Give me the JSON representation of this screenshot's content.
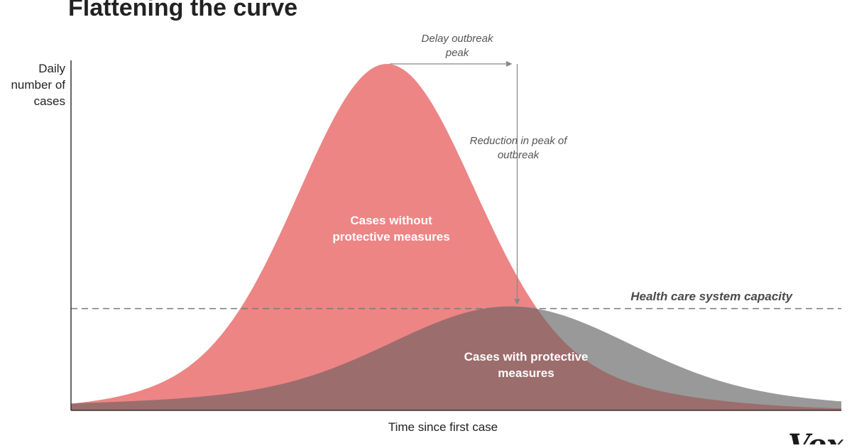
{
  "chart_data": {
    "type": "area",
    "title": "Flattening the curve",
    "xlabel": "Time since first case",
    "ylabel": [
      "Daily",
      "number of",
      "cases"
    ],
    "xlim": [
      0,
      100
    ],
    "ylim": [
      0,
      100
    ],
    "grid": false,
    "legend": "none",
    "series": [
      {
        "label": [
          "Cases without",
          "protective measures"
        ],
        "color": "#ed8585",
        "peak_x": 41,
        "peak_y": 100,
        "spread": 11,
        "tail_left": 12,
        "tail_right": 14
      },
      {
        "label": [
          "Cases with protective",
          "measures"
        ],
        "color": "#999999",
        "peak_x": 57,
        "peak_y": 30,
        "spread": 15,
        "tail_left": 25,
        "tail_right": 20
      }
    ],
    "overlap_color": "#9c6d6d",
    "capacity": {
      "y": 30,
      "label": "Health care system capacity"
    },
    "annotations": {
      "delay": [
        "Delay outbreak",
        "peak"
      ],
      "reduction": [
        "Reduction in peak of",
        "outbreak"
      ]
    }
  },
  "branding": {
    "logo": "Vox"
  }
}
